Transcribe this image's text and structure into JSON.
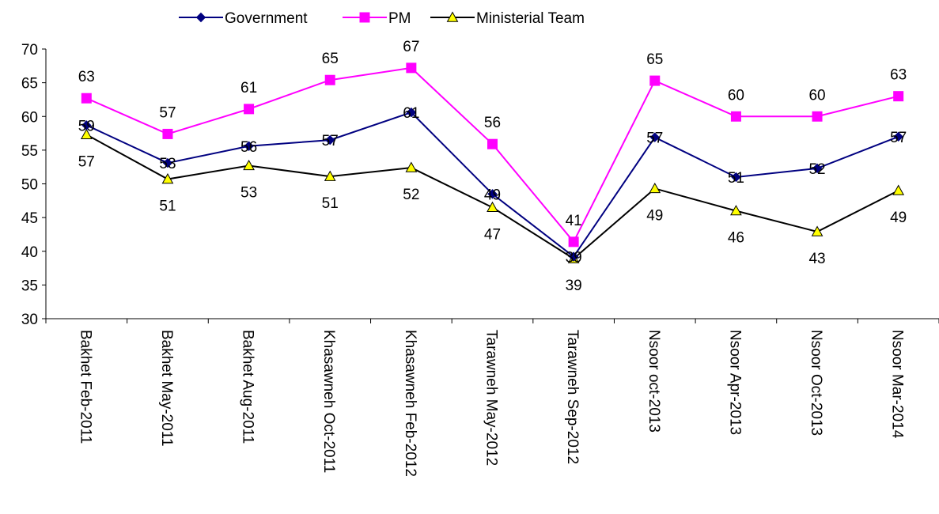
{
  "chart_data": {
    "type": "line",
    "categories": [
      "Bakhet Feb-2011",
      "Bakhet May-2011",
      "Bakhet Aug-2011",
      "Khasawneh Oct-2011",
      "Khasawneh Feb-2012",
      "Tarawneh May-2012",
      "Tarawneh Sep-2012",
      "Nsoor oct-2013",
      "Nsoor Apr-2013",
      "Nsoor Oct-2013",
      "Nsoor Mar-2014"
    ],
    "series": [
      {
        "name": "Government",
        "color": "#000080",
        "marker": "diamond",
        "values": [
          58.7,
          53.1,
          55.6,
          56.5,
          60.6,
          48.5,
          39.2,
          56.9,
          51.0,
          52.3,
          57.0
        ],
        "labels": [
          "59",
          "53",
          "56",
          "57",
          "61",
          "49",
          "39",
          "57",
          "51",
          "52",
          "57"
        ]
      },
      {
        "name": "PM",
        "color": "#FF00FF",
        "marker": "square",
        "values": [
          62.7,
          57.4,
          61.1,
          65.4,
          67.2,
          55.9,
          41.4,
          65.3,
          60.0,
          60.0,
          63.0
        ],
        "labels": [
          "63",
          "57",
          "61",
          "65",
          "67",
          "56",
          "41",
          "65",
          "60",
          "60",
          "63"
        ]
      },
      {
        "name": "Ministerial Team",
        "color": "#000000",
        "marker": "triangle",
        "markerFill": "#FFFF00",
        "values": [
          57.3,
          50.7,
          52.7,
          51.1,
          52.4,
          46.5,
          38.9,
          49.3,
          46.0,
          42.9,
          49.0
        ],
        "labels": [
          "57",
          "51",
          "53",
          "51",
          "52",
          "47",
          "39",
          "49",
          "46",
          "43",
          "49"
        ]
      }
    ],
    "y_ticks": [
      "30",
      "35",
      "40",
      "45",
      "50",
      "55",
      "60",
      "65",
      "70"
    ],
    "ylim": [
      30,
      70
    ],
    "grid": false,
    "legend_position": "top"
  }
}
